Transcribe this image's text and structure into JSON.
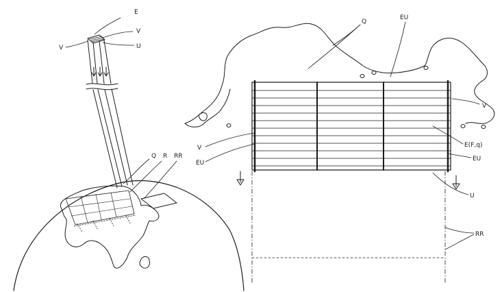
{
  "figure": {
    "ink_color": "#1a1a1a",
    "background_color": "#ffffff",
    "labels": {
      "beam_top_e": "E",
      "beam_top_v": "V",
      "beam_top_u": "U",
      "beam_left_v": "V",
      "globe_q": "Q",
      "globe_r": "R",
      "globe_rr": "RR",
      "map_q": "Q",
      "map_eu_top": "EU",
      "map_v_right": "V",
      "map_v_left": "V",
      "map_eu_left": "EU",
      "map_efq": "E(F,q)",
      "map_eu_right": "EU",
      "map_u": "U",
      "map_rr": "RR"
    }
  }
}
